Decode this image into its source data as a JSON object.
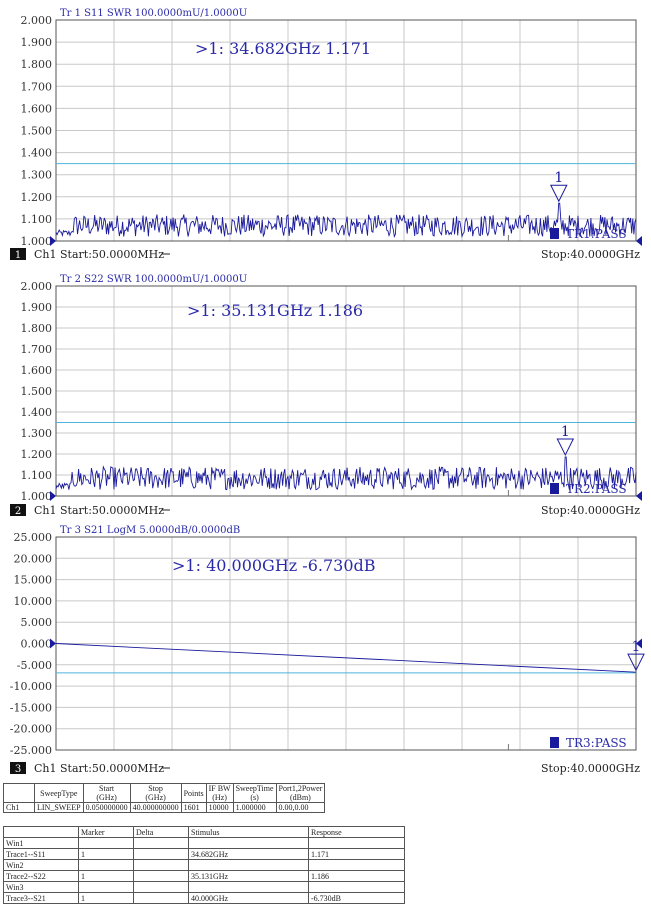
{
  "panels": [
    {
      "ch_num": "1",
      "trace_header": "Tr 1  S11 SWR 100.0000mU/1.0000U",
      "marker_readout": ">1:   34.682GHz  1.171",
      "marker_label": "1",
      "pass_label": "TR1:PASS",
      "start_label": "Ch1  Start:50.0000MHz",
      "stop_label": "Stop:40.0000GHz"
    },
    {
      "ch_num": "2",
      "trace_header": "Tr 2  S22 SWR 100.0000mU/1.0000U",
      "marker_readout": ">1:   35.131GHz  1.186",
      "marker_label": "1",
      "pass_label": "TR2:PASS",
      "start_label": "Ch1  Start:50.0000MHz",
      "stop_label": "Stop:40.0000GHz"
    },
    {
      "ch_num": "3",
      "trace_header": "Tr 3  S21 LogM 5.0000dB/0.0000dB",
      "marker_readout": ">1:   40.000GHz  -6.730dB",
      "marker_label": "1",
      "pass_label": "TR3:PASS",
      "start_label": "Ch1  Start:50.0000MHz",
      "stop_label": "Stop:40.0000GHz"
    }
  ],
  "chart_data": [
    {
      "type": "line",
      "title": "Tr 1  S11 SWR 100.0000mU/1.0000U",
      "x_range_ghz": [
        0.05,
        40
      ],
      "ylim": [
        1.0,
        2.0
      ],
      "y_ticks": [
        "2.000",
        "1.900",
        "1.800",
        "1.700",
        "1.600",
        "1.500",
        "1.400",
        "1.300",
        "1.200",
        "1.100",
        "1.000"
      ],
      "limit_line": 1.35,
      "trace_profile": {
        "baseline": 1.02,
        "noise_amplitude": 0.1
      },
      "marker": {
        "x": 34.682,
        "y": 1.171
      },
      "grid": true,
      "colors": {
        "trace": "#1a1a9c",
        "limit": "#4fb3d9",
        "grid": "#c8c8c8",
        "text": "#2a2aa8"
      }
    },
    {
      "type": "line",
      "title": "Tr 2  S22 SWR 100.0000mU/1.0000U",
      "x_range_ghz": [
        0.05,
        40
      ],
      "ylim": [
        1.0,
        2.0
      ],
      "y_ticks": [
        "2.000",
        "1.900",
        "1.800",
        "1.700",
        "1.600",
        "1.500",
        "1.400",
        "1.300",
        "1.200",
        "1.100",
        "1.000"
      ],
      "limit_line": 1.35,
      "trace_profile": {
        "baseline": 1.03,
        "noise_amplitude": 0.11
      },
      "marker": {
        "x": 35.131,
        "y": 1.186
      },
      "grid": true,
      "colors": {
        "trace": "#1a1a9c",
        "limit": "#4fb3d9",
        "grid": "#c8c8c8",
        "text": "#2a2aa8"
      }
    },
    {
      "type": "line",
      "title": "Tr 3  S21 LogM 5.0000dB/0.0000dB",
      "x_range_ghz": [
        0.05,
        40
      ],
      "ylim": [
        -25,
        25
      ],
      "y_ticks": [
        "25.000",
        "20.000",
        "15.000",
        "10.000",
        "5.000",
        "0.000",
        "-5.000",
        "-10.000",
        "-15.000",
        "-20.000",
        "-25.000"
      ],
      "limit_line": -6.9,
      "series": [
        {
          "x": [
            0.05,
            40
          ],
          "y": [
            0.0,
            -6.73
          ]
        }
      ],
      "marker": {
        "x": 40.0,
        "y": -6.73
      },
      "grid": true,
      "colors": {
        "trace": "#1a1a9c",
        "limit": "#4fb3d9",
        "grid": "#c8c8c8",
        "text": "#2a2aa8"
      }
    }
  ],
  "settings_table": {
    "headers": [
      [
        "",
        ""
      ],
      [
        "SweepType",
        ""
      ],
      [
        "Start",
        "(GHz)"
      ],
      [
        "Stop",
        "(GHz)"
      ],
      [
        "Points",
        ""
      ],
      [
        "IF BW",
        "(Hz)"
      ],
      [
        "SweepTime",
        "(s)"
      ],
      [
        "Port1,2Power",
        "(dBm)"
      ]
    ],
    "row": [
      "Ch1",
      "LIN_SWEEP",
      "0.050000000",
      "40.000000000",
      "1601",
      "10000",
      "1.000000",
      "0.00,0.00"
    ]
  },
  "marker_table": {
    "headers": [
      "",
      "Marker",
      "Delta",
      "Stimulus",
      "Response"
    ],
    "rows": [
      [
        "Win1",
        "",
        "",
        "",
        ""
      ],
      [
        "Trace1--S11",
        "1",
        "",
        "34.682GHz",
        "1.171"
      ],
      [
        "Win2",
        "",
        "",
        "",
        ""
      ],
      [
        "Trace2--S22",
        "1",
        "",
        "35.131GHz",
        "1.186"
      ],
      [
        "Win3",
        "",
        "",
        "",
        ""
      ],
      [
        "Trace3--S21",
        "1",
        "",
        "40.000GHz",
        "-6.730dB"
      ]
    ]
  }
}
